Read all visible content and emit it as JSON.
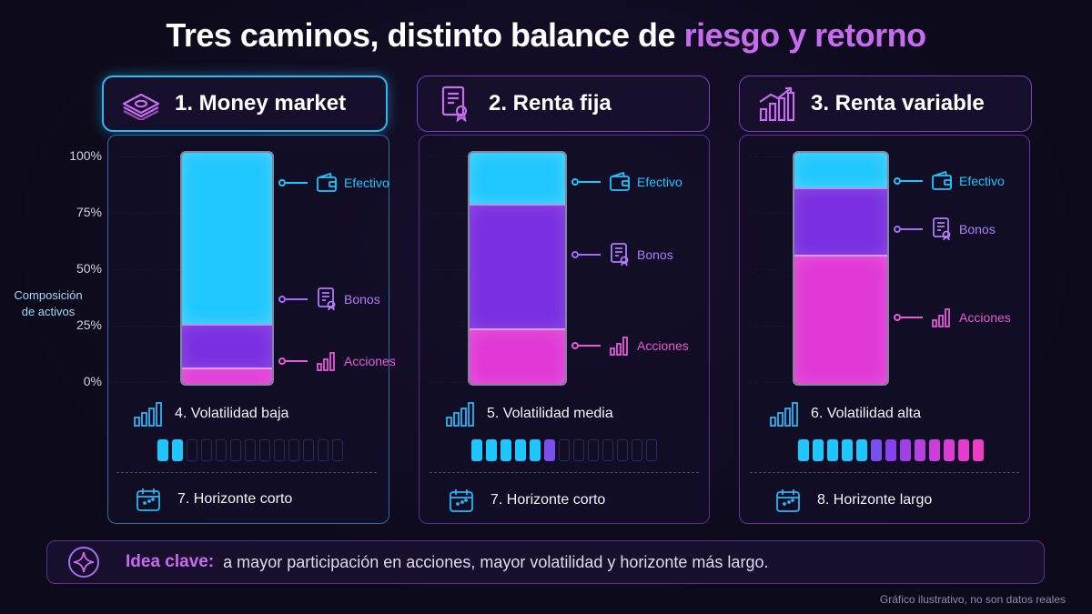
{
  "title": {
    "main": "Tres caminos, distinto balance de ",
    "highlight": "riesgo y retorno"
  },
  "colors": {
    "efectivo": "#1ec7ff",
    "bonos": "#7a2fe0",
    "acciones": "#e039d6",
    "accent": "#c86bf0",
    "background": "#0c0a1a"
  },
  "chart_data": {
    "type": "bar",
    "stacked": true,
    "categories": [
      "1. Money market",
      "2. Renta fija",
      "3. Renta variable"
    ],
    "series": [
      {
        "name": "Efectivo",
        "color": "#1ec7ff",
        "values": [
          74,
          22,
          15
        ]
      },
      {
        "name": "Bonos",
        "color": "#7a2fe0",
        "values": [
          19,
          54,
          29
        ]
      },
      {
        "name": "Acciones",
        "color": "#e039d6",
        "values": [
          7,
          24,
          56
        ]
      }
    ],
    "ylabel": "Composición de activos",
    "yticks": [
      "0%",
      "25%",
      "50%",
      "75%",
      "100%"
    ],
    "ylim": [
      0,
      100
    ],
    "legend": "beside each bar",
    "grid": true
  },
  "panels": [
    {
      "header": "1. Money market",
      "header_icon": "cash-stack-icon",
      "legend": [
        {
          "key": "ef",
          "label": "Efectivo",
          "icon": "wallet-icon"
        },
        {
          "key": "bo",
          "label": "Bonos",
          "icon": "certificate-icon"
        },
        {
          "key": "ac",
          "label": "Acciones",
          "icon": "bar-chart-icon"
        }
      ],
      "volatility": "4. Volatilidad baja",
      "volatility_level": 2,
      "horizon": "7. Horizonte corto"
    },
    {
      "header": "2. Renta fija",
      "header_icon": "certificate-icon",
      "legend": [
        {
          "key": "ef",
          "label": "Efectivo",
          "icon": "wallet-icon"
        },
        {
          "key": "bo",
          "label": "Bonos",
          "icon": "certificate-icon"
        },
        {
          "key": "ac",
          "label": "Acciones",
          "icon": "bar-chart-icon"
        }
      ],
      "volatility": "5. Volatilidad media",
      "volatility_level": 6,
      "horizon": "7. Horizonte corto"
    },
    {
      "header": "3. Renta variable",
      "header_icon": "growth-chart-icon",
      "legend": [
        {
          "key": "ef",
          "label": "Efectivo",
          "icon": "wallet-icon"
        },
        {
          "key": "bo",
          "label": "Bonos",
          "icon": "certificate-icon"
        },
        {
          "key": "ac",
          "label": "Acciones",
          "icon": "bar-chart-icon"
        }
      ],
      "volatility": "6. Volatilidad alta",
      "volatility_level": 13,
      "horizon": "8. Horizonte largo"
    }
  ],
  "meter_cells": 13,
  "key": {
    "label": "Idea clave:",
    "text": "a mayor participación en acciones, mayor volatilidad y horizonte más largo.",
    "icon": "sparkle-icon"
  },
  "footnote": "Gráfico ilustrativo, no son datos reales"
}
